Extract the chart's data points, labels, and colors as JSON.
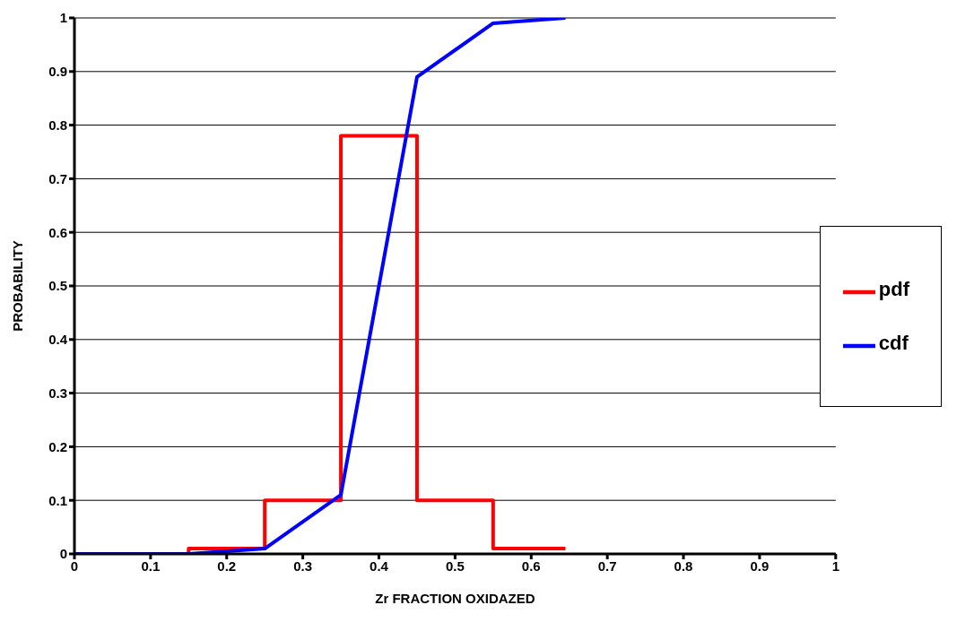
{
  "chart_data": {
    "type": "line",
    "xlabel": "Zr FRACTION OXIDAZED",
    "ylabel": "PROBABILITY",
    "xlim": [
      0,
      1
    ],
    "xticks": [
      0,
      0.1,
      0.2,
      0.3,
      0.4,
      0.5,
      0.6,
      0.7,
      0.8,
      0.9,
      1
    ],
    "ylim": [
      0,
      1
    ],
    "yticks": [
      0,
      0.1,
      0.2,
      0.3,
      0.4,
      0.5,
      0.6,
      0.7,
      0.8,
      0.9,
      1
    ],
    "grid": "y",
    "legend": "right",
    "marker": "none",
    "line_style": "solid",
    "series": [
      {
        "name": "pdf",
        "type": "step",
        "color": "#ff0000",
        "x": [
          0,
          0.15,
          0.25,
          0.35,
          0.45,
          0.55,
          0.645
        ],
        "values": [
          0,
          0.01,
          0.1,
          0.78,
          0.1,
          0.01,
          0.01
        ]
      },
      {
        "name": "cdf",
        "color": "#0000ff",
        "x": [
          0,
          0.15,
          0.25,
          0.35,
          0.45,
          0.55,
          0.645
        ],
        "values": [
          0,
          0,
          0.01,
          0.11,
          0.89,
          0.99,
          1
        ]
      }
    ]
  }
}
